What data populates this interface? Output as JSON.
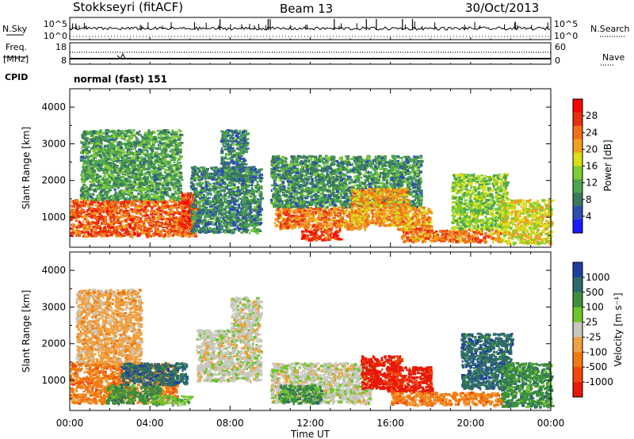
{
  "header": {
    "station": "Stokkseyri (fitACF)",
    "beam": "Beam 13",
    "date": "30/Oct/2013"
  },
  "left_labels": {
    "nsky": "N.Sky",
    "freq": "Freq.",
    "freq_unit": "[MHz]",
    "cpid": "CPID"
  },
  "right_labels": {
    "nsearch": "N.Search",
    "nave": "Nave"
  },
  "cpid_value": "normal (fast) 151",
  "chart_data": [
    {
      "type": "line",
      "name": "noise-panel",
      "yticks_left": [
        "10^5",
        "10^0"
      ],
      "yticks_right": [
        "10^5",
        "10^0"
      ],
      "x_range_hours": [
        0,
        24
      ],
      "series": [
        {
          "label": "N.Sky",
          "style": "solid",
          "baseline": 0.2,
          "spikes_hours": [
            7.5,
            9.9,
            10.0,
            13.2,
            14.8,
            15.3,
            16.6,
            17.1
          ]
        },
        {
          "label": "N.Search",
          "style": "dotted",
          "baseline": 0.1
        }
      ]
    },
    {
      "type": "line",
      "name": "frequency-panel",
      "yticks_left": [
        "18",
        "8"
      ],
      "yticks_right": [
        "60",
        "0"
      ],
      "x_range_hours": [
        0,
        24
      ],
      "series": [
        {
          "label": "Freq.",
          "style": "solid",
          "value": 10
        },
        {
          "label": "Nave",
          "style": "dotted",
          "value": 45
        }
      ]
    },
    {
      "type": "heatmap",
      "name": "power-panel",
      "ylabel": "Slant Range [km]",
      "ylim": [
        180,
        4500
      ],
      "yticks": [
        1000,
        2000,
        3000,
        4000
      ],
      "xlim_hours": [
        0,
        24
      ],
      "colorbar": {
        "label": "Power [dB]",
        "range": [
          0,
          32
        ],
        "ticks": [
          4,
          8,
          12,
          16,
          20,
          24,
          28
        ],
        "colors": [
          "#1a1aff",
          "#2d4db3",
          "#3a7a5c",
          "#4da64d",
          "#80cc33",
          "#d9e01a",
          "#f0a020",
          "#f07018",
          "#e83010",
          "#ff0000"
        ]
      },
      "regions": [
        {
          "x": [
            0,
            6.3
          ],
          "y": [
            500,
            1500
          ],
          "v": 26
        },
        {
          "x": [
            0.5,
            5.5
          ],
          "y": [
            1500,
            3400
          ],
          "v": 10
        },
        {
          "x": [
            5.5,
            6.2
          ],
          "y": [
            700,
            1700
          ],
          "v": 28
        },
        {
          "x": [
            6,
            9.5
          ],
          "y": [
            600,
            2400
          ],
          "v": 8
        },
        {
          "x": [
            7.5,
            8.8
          ],
          "y": [
            2000,
            3400
          ],
          "v": 8
        },
        {
          "x": [
            10.2,
            14.8
          ],
          "y": [
            700,
            1300
          ],
          "v": 24
        },
        {
          "x": [
            11.5,
            13.5
          ],
          "y": [
            400,
            700
          ],
          "v": 28
        },
        {
          "x": [
            10,
            17.5
          ],
          "y": [
            1300,
            2700
          ],
          "v": 9
        },
        {
          "x": [
            14,
            16.8
          ],
          "y": [
            800,
            1800
          ],
          "v": 22
        },
        {
          "x": [
            16.5,
            21.5
          ],
          "y": [
            350,
            700
          ],
          "v": 24
        },
        {
          "x": [
            16.3,
            18
          ],
          "y": [
            700,
            1300
          ],
          "v": 22
        },
        {
          "x": [
            19,
            21.8
          ],
          "y": [
            700,
            2200
          ],
          "v": 14
        },
        {
          "x": [
            21.5,
            24
          ],
          "y": [
            300,
            1500
          ],
          "v": 18
        }
      ]
    },
    {
      "type": "heatmap",
      "name": "velocity-panel",
      "ylabel": "Slant Range [km]",
      "ylim": [
        180,
        4500
      ],
      "yticks": [
        1000,
        2000,
        3000,
        4000
      ],
      "xlim_hours": [
        0,
        24
      ],
      "xticks": [
        "00:00",
        "04:00",
        "08:00",
        "12:00",
        "16:00",
        "20:00",
        "00:00"
      ],
      "xlabel": "Time UT",
      "colorbar": {
        "label": "Velocity [m s⁻¹]",
        "tick_labels": [
          "1000",
          "500",
          "100",
          "25",
          "-25",
          "-100",
          "-500",
          "-1000"
        ],
        "colors": [
          "#1f3fa0",
          "#2e6a6a",
          "#3d8f3d",
          "#6fc42a",
          "#c8c8c0",
          "#f0a040",
          "#f07a10",
          "#f04808",
          "#e81808"
        ]
      },
      "regions": [
        {
          "x": [
            0,
            5.3
          ],
          "y": [
            400,
            1500
          ],
          "c": 6
        },
        {
          "x": [
            0.3,
            3.5
          ],
          "y": [
            1500,
            3500
          ],
          "c": 5
        },
        {
          "x": [
            1.8,
            4.5
          ],
          "y": [
            400,
            900
          ],
          "c": 2
        },
        {
          "x": [
            2.5,
            5.8
          ],
          "y": [
            900,
            1500
          ],
          "c": 1
        },
        {
          "x": [
            4,
            6
          ],
          "y": [
            350,
            600
          ],
          "c": 3
        },
        {
          "x": [
            6.3,
            9.5
          ],
          "y": [
            1000,
            2400
          ],
          "c": 4
        },
        {
          "x": [
            8,
            9.5
          ],
          "y": [
            2400,
            3300
          ],
          "c": 4
        },
        {
          "x": [
            10,
            15
          ],
          "y": [
            400,
            1500
          ],
          "c": 4
        },
        {
          "x": [
            10.4,
            12.5
          ],
          "y": [
            400,
            900
          ],
          "c": 2
        },
        {
          "x": [
            14.5,
            16.5
          ],
          "y": [
            800,
            1700
          ],
          "c": 8
        },
        {
          "x": [
            15.8,
            18
          ],
          "y": [
            700,
            1400
          ],
          "c": 8
        },
        {
          "x": [
            16,
            21.5
          ],
          "y": [
            350,
            700
          ],
          "c": 6
        },
        {
          "x": [
            19.5,
            22
          ],
          "y": [
            800,
            2300
          ],
          "c": 1
        },
        {
          "x": [
            21.5,
            24
          ],
          "y": [
            300,
            1500
          ],
          "c": 2
        }
      ]
    }
  ]
}
